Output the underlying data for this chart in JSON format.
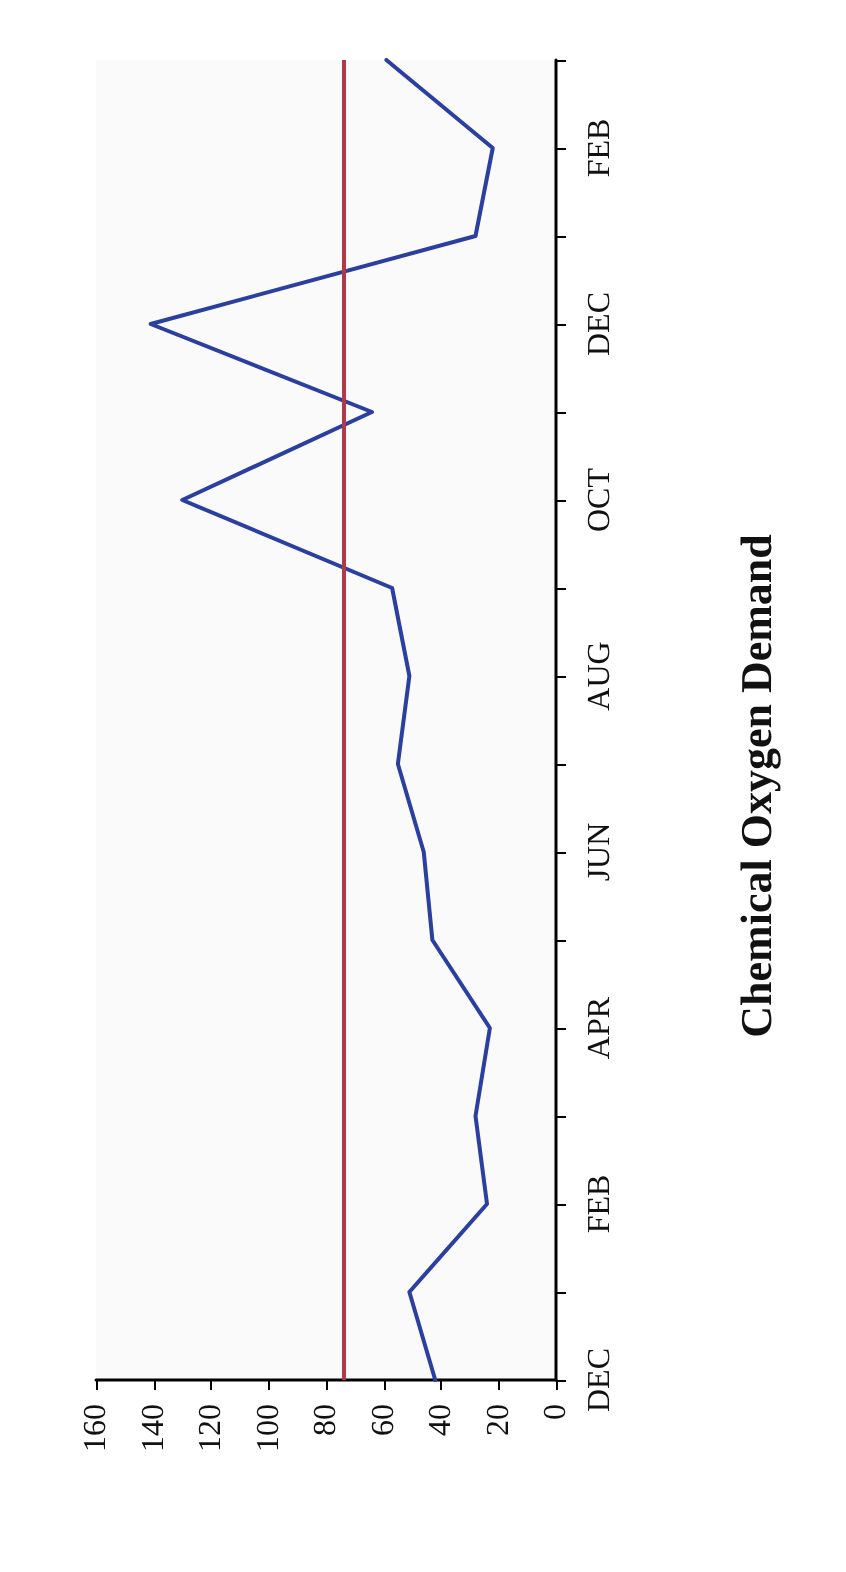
{
  "chart_data": {
    "type": "line",
    "title": "Chemical Oxygen Demand",
    "orientation": "horizontal",
    "categories": [
      null,
      "FEB",
      null,
      "DEC",
      null,
      "OCT",
      null,
      "AUG",
      null,
      "JUN",
      null,
      "APR",
      null,
      "FEB",
      null,
      "DEC"
    ],
    "series": [
      {
        "color": "#2a3f9f",
        "values": [
          59,
          22,
          28,
          141,
          64,
          130,
          57,
          51,
          55,
          46,
          43,
          23,
          28,
          24,
          51,
          42
        ]
      }
    ],
    "xlim": [
      160,
      0
    ],
    "xticks": [
      160,
      140,
      120,
      100,
      80,
      60,
      40,
      20,
      0
    ],
    "ref_lines": [
      {
        "axis": "x",
        "value": 74,
        "color": "#b03a48"
      }
    ],
    "grid": false,
    "marker": "none",
    "line_style": "solid"
  }
}
